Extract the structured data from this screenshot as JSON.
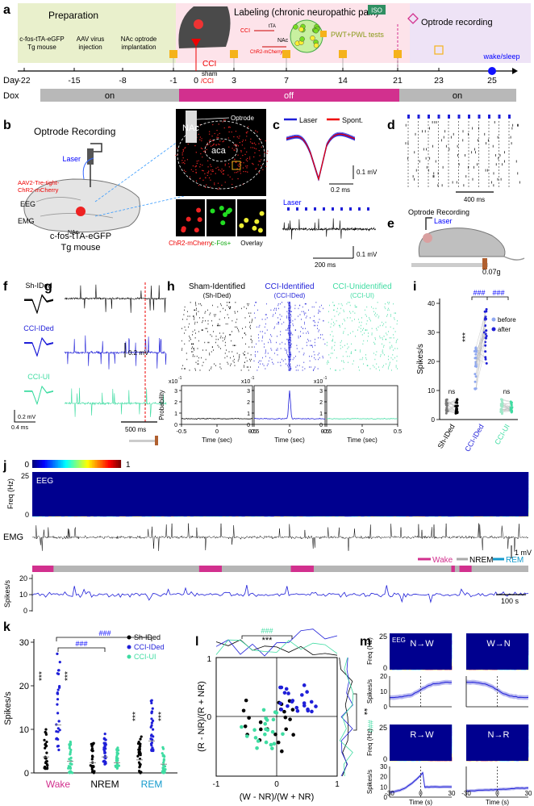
{
  "a": {
    "label": "a",
    "preparation": "Preparation",
    "labeling": "Labeling (chronic neuropathic pain)",
    "iso": "ISO",
    "optrode": "Optrode recording",
    "steps": [
      [
        "c-fos-tTA-eGFP",
        "Tg mouse"
      ],
      [
        "AAV virus",
        "injection"
      ],
      [
        "NAc optrode",
        "implantation"
      ]
    ],
    "inset_cci": "CCI",
    "inset_tta": "tTA",
    "inset_nac": "NAc",
    "inset_chr2": "ChR2-mCherry",
    "pwt": "PWT+PWL tests",
    "cci": "CCI",
    "sham": "sham",
    "sham_cci": "/CCI",
    "wake_sleep": "wake/sleep",
    "day": "Day",
    "days": [
      "-22",
      "-15",
      "-8",
      "-1",
      "0",
      "3",
      "7",
      "14",
      "21",
      "23",
      "25"
    ],
    "dox": "Dox",
    "dox_states": [
      "on",
      "off",
      "on"
    ]
  },
  "b": {
    "label": "b",
    "title": "Optrode Recording",
    "laser": "Laser",
    "virus": [
      "AAV2-Tre-tight-",
      "ChR2-mCherry"
    ],
    "eeg": "EEG",
    "emg": "EMG",
    "nac": "NAc",
    "mouse": [
      "c-fos-tTA-eGFP",
      "Tg mouse"
    ],
    "histo": {
      "nac": "NAc",
      "aca": "aca",
      "optrode": "Optrode"
    },
    "insets": [
      "ChR2-mCherry",
      "c-Fos+",
      "Overlay"
    ]
  },
  "c": {
    "label": "c",
    "legend": [
      "Laser",
      "Spont."
    ],
    "scale1": [
      "0.1 mV",
      "0.2 ms"
    ],
    "laser": "Laser",
    "scale2": [
      "0.1 mV",
      "200 ms"
    ]
  },
  "d": {
    "label": "d",
    "scale": "400 ms"
  },
  "e": {
    "label": "e",
    "title": "Optrode Recording",
    "laser": "Laser",
    "weight": "0.07g"
  },
  "f": {
    "label": "f",
    "units": [
      "Sh-IDed",
      "CCI-IDed",
      "CCI-UI"
    ],
    "scale": [
      "0.2 mV",
      "0.4 ms"
    ]
  },
  "g": {
    "label": "g",
    "scale": [
      "0.2 mV",
      "500 ms"
    ]
  },
  "h": {
    "label": "h",
    "columns": [
      {
        "title": "Sham-Identified",
        "sub": "(Sh-IDed)"
      },
      {
        "title": "CCI-Identified",
        "sub": "(CCI-IDed)"
      },
      {
        "title": "CCI-Unidentified",
        "sub": "(CCI-UI)"
      }
    ],
    "multiplier": "x10",
    "exponent": "-1",
    "ylabel": "Probability",
    "yticks": [
      "0",
      "1",
      "2",
      "3"
    ],
    "xlabel": "Time (sec)",
    "xticks": [
      "-0.5",
      "0",
      "0.5"
    ]
  },
  "i": {
    "label": "i",
    "ylabel": "Spikes/s",
    "yticks": [
      "0",
      "10",
      "20",
      "30",
      "40"
    ],
    "categories": [
      "Sh-IDed",
      "CCI-IDed",
      "CCI-UI"
    ],
    "sig": {
      "ns1": "ns",
      "ns2": "ns",
      "stars": "***",
      "hash1": "###",
      "hash2": "###"
    },
    "legend": [
      "before",
      "after"
    ]
  },
  "j": {
    "label": "j",
    "colorbar": [
      "0",
      "1"
    ],
    "eeg": "EEG",
    "freq": "Freq (Hz)",
    "fticks": [
      "25",
      "0"
    ],
    "emg": "EMG",
    "states": [
      "Wake",
      "NREM",
      "REM"
    ],
    "scale_mv": "1 mV",
    "ylabel": "Spikes/s",
    "yticks": [
      "20",
      "10",
      "0"
    ],
    "scale_t": "100 s"
  },
  "k": {
    "label": "k",
    "ylabel": "Spikes/s",
    "yticks": [
      "0",
      "10",
      "20",
      "30"
    ],
    "categories": [
      "Wake",
      "NREM",
      "REM"
    ],
    "legend": [
      "Sh-IDed",
      "CCI-IDed",
      "CCI-UI"
    ],
    "sig": [
      "###",
      "###",
      "***",
      "***",
      "***",
      "***"
    ]
  },
  "l": {
    "label": "l",
    "xlabel": "(W - NR)/(W + NR)",
    "ylabel": "(R - NR)/(R + NR)",
    "xticks": [
      "-1",
      "0",
      "1"
    ],
    "yticks": [
      "1",
      "0"
    ],
    "sig_top": [
      "###",
      "***"
    ],
    "sig_right": [
      "**",
      "###"
    ]
  },
  "m": {
    "label": "m",
    "panels": [
      {
        "title": "N→W"
      },
      {
        "title": "W→N"
      },
      {
        "title": "R→W"
      },
      {
        "title": "N→R"
      }
    ],
    "eeg": "EEG",
    "freq": "Freq (Hz)",
    "fticks": [
      "25",
      "0"
    ],
    "ylabel": "Spikes/s",
    "yticks": [
      "20",
      "10",
      "0"
    ],
    "yticks2": [
      "30",
      "20",
      "10",
      "0"
    ],
    "xticks": [
      "-30",
      "0",
      "30"
    ],
    "xlabel": "Time (s)"
  }
}
